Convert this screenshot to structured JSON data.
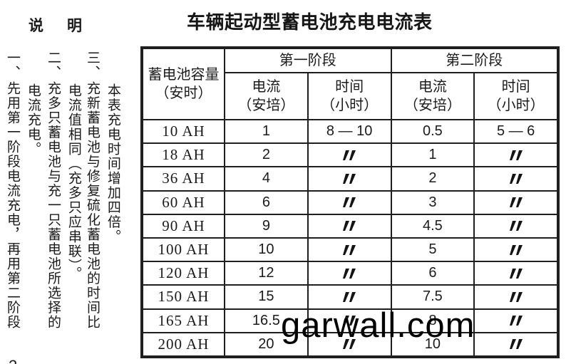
{
  "notes": {
    "heading": "说明",
    "items": [
      {
        "number": "一、",
        "part1": "先用第一阶段电流充电，再用第二阶段",
        "part2": "电流充电。"
      },
      {
        "number": "二、",
        "part1": "充多只蓄电池与充一只蓄电池所选择的",
        "part2": "电流值相同（充多只应串联）。"
      },
      {
        "number": "三、",
        "part1": "充新蓄电池与修复硫化蓄电池的时间比",
        "part2": "本表充电时间增加四倍。"
      }
    ]
  },
  "table": {
    "title": "车辆起动型蓄电池充电电流表",
    "header": {
      "capacity": "蓄电池容量",
      "capacity_unit": "（安时）",
      "stage1": "第一阶段",
      "stage2": "第二阶段",
      "current": "电流",
      "current_unit": "（安培）",
      "time": "时间",
      "time_unit": "（小时）"
    },
    "ditto_symbol": "〃",
    "rows": [
      [
        "10 AH",
        "1",
        "8 — 10",
        "0.5",
        "5 — 6"
      ],
      [
        "18 AH",
        "2",
        "〃",
        "1",
        "〃"
      ],
      [
        "36 AH",
        "4",
        "〃",
        "2",
        "〃"
      ],
      [
        "60 AH",
        "6",
        "〃",
        "3",
        "〃"
      ],
      [
        "90 AH",
        "9",
        "〃",
        "4.5",
        "〃"
      ],
      [
        "100 AH",
        "10",
        "〃",
        "5",
        "〃"
      ],
      [
        "120 AH",
        "12",
        "〃",
        "6",
        "〃"
      ],
      [
        "150 AH",
        "15",
        "〃",
        "7.5",
        "〃"
      ],
      [
        "165 AH",
        "16.5",
        "〃",
        "8",
        "〃"
      ],
      [
        "200 AH",
        "20",
        "〃",
        "10",
        "〃"
      ]
    ]
  },
  "watermark": {
    "text": "garwall.com",
    "color": "#000000"
  },
  "page": {
    "corner_mark": "2",
    "ink_color": "#1b1b1b",
    "background": "#ffffff"
  }
}
